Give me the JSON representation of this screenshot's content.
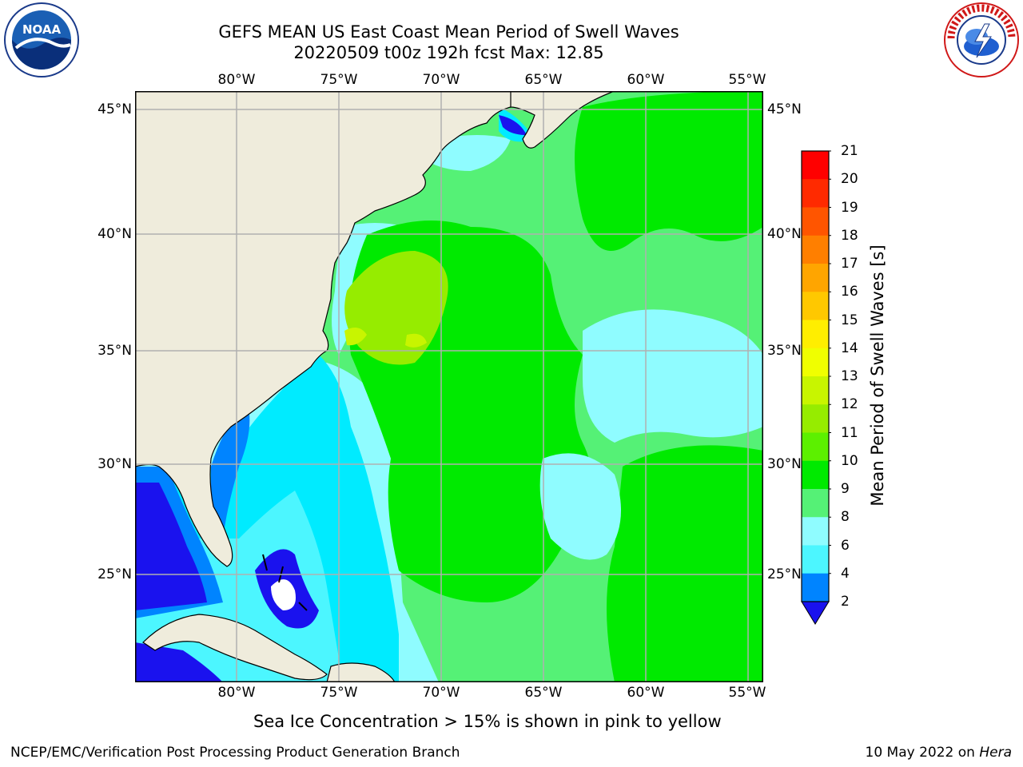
{
  "header": {
    "title_line1": "GEFS MEAN US East Coast Mean Period of Swell Waves",
    "title_line2": "20220509 t00z 192h fcst   Max: 12.85"
  },
  "map": {
    "longitude_labels": [
      "80°W",
      "75°W",
      "70°W",
      "65°W",
      "60°W",
      "55°W"
    ],
    "latitude_labels": [
      "45°N",
      "40°N",
      "35°N",
      "30°N",
      "25°N"
    ],
    "colors": {
      "land": "#efecdc",
      "gridline": "#b0b0b0",
      "coastline": "#000000",
      "missing": "#ffffff"
    }
  },
  "colorbar": {
    "label": "Mean Period of Swell Waves [s]",
    "ticks": [
      "21",
      "20",
      "19",
      "18",
      "17",
      "16",
      "15",
      "14",
      "13",
      "12",
      "11",
      "10",
      "9",
      "8",
      "6",
      "4",
      "2"
    ],
    "colors": [
      "#ff0000",
      "#ff2a00",
      "#ff5500",
      "#ff7f00",
      "#ffa500",
      "#ffc800",
      "#ffee00",
      "#f0ff00",
      "#c8f500",
      "#96ec00",
      "#5cf000",
      "#00ea00",
      "#55f176",
      "#8ffcff",
      "#4cf6ff",
      "#00ebff",
      "#0084ff"
    ],
    "underflow_color": "#1a12ee"
  },
  "notes": {
    "sea_ice": "Sea Ice Concentration > 15% is shown in pink to yellow"
  },
  "footer": {
    "left": "NCEP/EMC/Verification Post Processing Product Generation Branch",
    "date_text": "10 May 2022 on ",
    "machine": "Hera"
  },
  "logos": {
    "left_name": "NOAA",
    "right_name": "NATIONAL WEATHER SERVICE"
  }
}
